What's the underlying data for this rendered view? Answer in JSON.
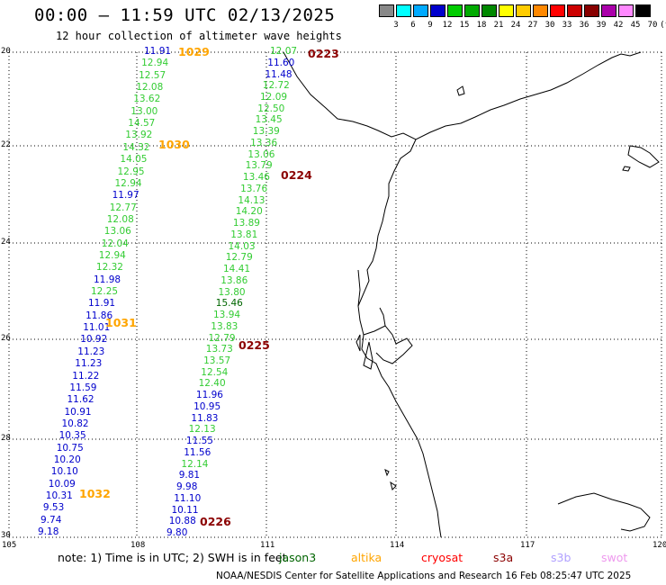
{
  "header": {
    "title": "00:00 – 11:59 UTC 02/13/2025",
    "subtitle": "12 hour collection of altimeter wave heights"
  },
  "legend": {
    "labels": [
      "3",
      "6",
      "9",
      "12",
      "15",
      "18",
      "21",
      "24",
      "27",
      "30",
      "33",
      "36",
      "39",
      "42",
      "45",
      "70",
      "(ft)"
    ],
    "colors": [
      "#888888",
      "#00ffff",
      "#00aaff",
      "#0000cc",
      "#00cc00",
      "#00aa00",
      "#008800",
      "#ffff00",
      "#ffcc00",
      "#ff8800",
      "#ff0000",
      "#cc0000",
      "#880000",
      "#aa00aa",
      "#ff88ff",
      "#000000"
    ]
  },
  "map": {
    "lat_labels": [
      "20",
      "22",
      "24",
      "26",
      "28",
      "30"
    ],
    "lon_labels": [
      "105",
      "108",
      "111",
      "114",
      "117",
      "120"
    ]
  },
  "tracks": [
    {
      "satellite": "altika",
      "label_color": "#ffa500",
      "times": [
        "1029",
        "1030",
        "1031",
        "1032"
      ],
      "values": [
        "11.91",
        "12.94",
        "12.57",
        "12.08",
        "13.62",
        "13.00",
        "14.57",
        "13.92",
        "14.32",
        "14.05",
        "12.95",
        "12.94",
        "11.97",
        "12.77",
        "12.08",
        "13.06",
        "12.04",
        "12.94",
        "12.32",
        "11.98",
        "12.25",
        "11.91",
        "11.86",
        "11.01",
        "10.92",
        "11.23",
        "11.23",
        "11.22",
        "11.59",
        "11.62",
        "10.91",
        "10.82",
        "10.35",
        "10.75",
        "10.20",
        "10.10",
        "10.09",
        "10.31",
        "9.53",
        "9.74",
        "9.18"
      ]
    },
    {
      "satellite": "s3a",
      "label_color": "#8b0000",
      "times": [
        "0223",
        "0224",
        "0225",
        "0226"
      ],
      "values": [
        "12.07",
        "11.60",
        "11.48",
        "12.72",
        "12.09",
        "12.50",
        "13.45",
        "13.39",
        "13.36",
        "13.06",
        "13.79",
        "13.46",
        "13.76",
        "14.13",
        "14.20",
        "13.89",
        "13.81",
        "14.03",
        "12.79",
        "14.41",
        "13.86",
        "13.80",
        "15.46",
        "13.94",
        "13.83",
        "12.79",
        "13.73",
        "13.57",
        "12.54",
        "12.40",
        "11.96",
        "10.95",
        "11.83",
        "12.13",
        "11.55",
        "11.56",
        "12.14",
        "9.81",
        "9.98",
        "11.10",
        "10.11",
        "10.88",
        "9.80"
      ]
    }
  ],
  "note": "note:  1) Time is in UTC; 2) SWH is in feet",
  "satellites": [
    {
      "name": "jason3",
      "color": "#006400"
    },
    {
      "name": "altika",
      "color": "#ffa500"
    },
    {
      "name": "cryosat",
      "color": "#ff0000"
    },
    {
      "name": "s3a",
      "color": "#8b0000"
    },
    {
      "name": "s3b",
      "color": "#b0a0ff"
    },
    {
      "name": "swot",
      "color": "#ee99ee"
    }
  ],
  "footer": "NOAA/NESDIS Center for Satellite Applications and Research     16 Feb 08:25:47 UTC 2025"
}
